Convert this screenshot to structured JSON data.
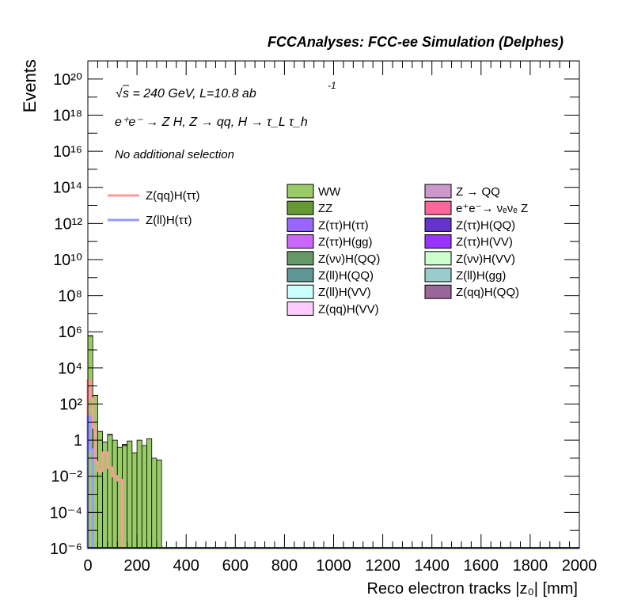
{
  "header": {
    "title": "FCCAnalyses: FCC-ee Simulation (Delphes)"
  },
  "annotations": {
    "sqrt_s": "s = 240 GeV, L=10.8 ab",
    "lumi_exp": "-1",
    "process": "e⁺e⁻ → Z H, Z → qq, H → τ_L τ_h",
    "selection": "No additional selection"
  },
  "chart_data": {
    "type": "bar",
    "title": "",
    "xlabel": "Reco electron tracks |z₀| [mm]",
    "ylabel": "Events",
    "xlim": [
      0,
      2000
    ],
    "ylim_exp": [
      -6,
      21
    ],
    "yscale": "log",
    "bin_width_mm": 20,
    "x_ticks": [
      0,
      200,
      400,
      600,
      800,
      1000,
      1200,
      1400,
      1600,
      1800,
      2000
    ],
    "y_ticks": [
      "10⁻⁶",
      "10⁻⁴",
      "10⁻²",
      "1",
      "10²",
      "10⁴",
      "10⁶",
      "10⁸",
      "10¹⁰",
      "10¹²",
      "10¹⁴",
      "10¹⁶",
      "10¹⁸",
      "10²⁰"
    ],
    "stacked_backgrounds": [
      {
        "name": "WW",
        "color": "#99cc66",
        "bins": [
          [
            0,
            20,
            600000
          ],
          [
            20,
            40,
            300
          ],
          [
            40,
            60,
            3
          ],
          [
            60,
            80,
            0.8
          ],
          [
            80,
            100,
            2
          ],
          [
            100,
            120,
            1
          ],
          [
            120,
            140,
            0.4
          ],
          [
            140,
            160,
            0.5
          ],
          [
            160,
            180,
            0.9
          ],
          [
            180,
            200,
            0.2
          ],
          [
            200,
            220,
            1
          ],
          [
            220,
            240,
            0.5
          ],
          [
            240,
            260,
            1.2
          ],
          [
            260,
            280,
            0.1
          ],
          [
            280,
            300,
            0.08
          ]
        ]
      },
      {
        "name": "ZZ",
        "color": "#669933",
        "bins": [
          [
            0,
            20,
            30
          ],
          [
            20,
            40,
            2
          ],
          [
            40,
            60,
            0.003
          ],
          [
            80,
            100,
            0.1
          ],
          [
            140,
            160,
            0.08
          ]
        ]
      },
      {
        "name": "e⁺e⁻→ νₑνₑ Z",
        "color": "#ff6699",
        "bins": [
          [
            0,
            20,
            2
          ],
          [
            20,
            40,
            0.05
          ]
        ]
      },
      {
        "name": "Z(ττ)H(ττ)",
        "color": "#9966ff",
        "bins": [
          [
            0,
            20,
            0.2
          ],
          [
            20,
            40,
            0.01
          ]
        ]
      }
    ],
    "signals": [
      {
        "name": "Z(qq)H(ττ)",
        "color": "#ff9999",
        "bins": [
          [
            0,
            10,
            2000
          ],
          [
            10,
            20,
            200
          ],
          [
            20,
            30,
            5
          ],
          [
            30,
            40,
            0.06
          ],
          [
            40,
            60,
            0.02
          ],
          [
            60,
            80,
            0.2
          ],
          [
            80,
            100,
            0.03
          ],
          [
            100,
            120,
            0.01
          ],
          [
            120,
            140,
            0.006
          ]
        ]
      },
      {
        "name": "Z(ll)H(ττ)",
        "color": "#9999ff",
        "bins": [
          [
            0,
            10,
            20
          ],
          [
            10,
            20,
            0.3
          ]
        ]
      }
    ],
    "legend_signals": [
      {
        "name": "Z(qq)H(ττ)",
        "color": "#ff9999"
      },
      {
        "name": "Z(ll)H(ττ)",
        "color": "#9999ff"
      }
    ],
    "legend_bkg_col1": [
      {
        "name": "WW",
        "color": "#99cc66"
      },
      {
        "name": "ZZ",
        "color": "#669933"
      },
      {
        "name": "Z(ττ)H(ττ)",
        "color": "#9966ff"
      },
      {
        "name": "Z(ττ)H(gg)",
        "color": "#cc66ff"
      },
      {
        "name": "Z(νν)H(QQ)",
        "color": "#669966"
      },
      {
        "name": "Z(ll)H(QQ)",
        "color": "#5e9696"
      },
      {
        "name": "Z(ll)H(VV)",
        "color": "#ccffff"
      },
      {
        "name": "Z(qq)H(VV)",
        "color": "#ffccff"
      }
    ],
    "legend_bkg_col2": [
      {
        "name": "Z → QQ",
        "color": "#cc99cc"
      },
      {
        "name": "e⁺e⁻→ νₑνₑ Z",
        "color": "#ff6699"
      },
      {
        "name": "Z(ττ)H(QQ)",
        "color": "#6633cc"
      },
      {
        "name": "Z(ττ)H(VV)",
        "color": "#9933ff"
      },
      {
        "name": "Z(νν)H(VV)",
        "color": "#ccffcc"
      },
      {
        "name": "Z(ll)H(gg)",
        "color": "#99cccc"
      },
      {
        "name": "Z(qq)H(QQ)",
        "color": "#996699"
      }
    ],
    "grid": false
  }
}
